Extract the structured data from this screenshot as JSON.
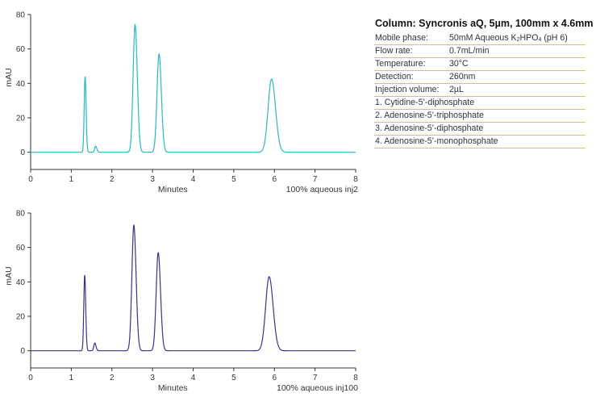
{
  "chart_data": [
    {
      "type": "line",
      "ylabel": "mAU",
      "xlabel": "Minutes",
      "caption": "100% aqueous inj2",
      "color": "#2ab7c2",
      "xlim": [
        0,
        8
      ],
      "ylim": [
        -10,
        80
      ],
      "xticks": [
        "0",
        "1",
        "2",
        "3",
        "4",
        "5",
        "6",
        "7",
        "8"
      ],
      "yticks": [
        "0",
        "20",
        "40",
        "60",
        "80"
      ],
      "baseline": 0,
      "peaks": [
        {
          "rt": 1.34,
          "height": 44,
          "width": 0.022
        },
        {
          "rt": 1.6,
          "height": 3.5,
          "width": 0.025
        },
        {
          "rt": 2.57,
          "height": 74,
          "width": 0.048
        },
        {
          "rt": 3.16,
          "height": 57,
          "width": 0.05
        },
        {
          "rt": 5.93,
          "height": 42.5,
          "width": 0.085
        }
      ]
    },
    {
      "type": "line",
      "ylabel": "mAU",
      "xlabel": "Minutes",
      "caption": "100% aqueous inj100",
      "color": "#3a3580",
      "xlim": [
        0,
        8
      ],
      "ylim": [
        -10,
        80
      ],
      "xticks": [
        "0",
        "1",
        "2",
        "3",
        "4",
        "5",
        "6",
        "7",
        "8"
      ],
      "yticks": [
        "0",
        "20",
        "40",
        "60",
        "80"
      ],
      "baseline": 0,
      "peaks": [
        {
          "rt": 1.33,
          "height": 44,
          "width": 0.022
        },
        {
          "rt": 1.58,
          "height": 4.5,
          "width": 0.025
        },
        {
          "rt": 2.54,
          "height": 73,
          "width": 0.048
        },
        {
          "rt": 3.14,
          "height": 57,
          "width": 0.05
        },
        {
          "rt": 5.87,
          "height": 43,
          "width": 0.085
        }
      ]
    }
  ],
  "info": {
    "title": "Column: Syncronis aQ, 5µm, 100mm x 4.6mm",
    "conditions": [
      {
        "label": "Mobile phase:",
        "value_pre": "50mM Aqueous K",
        "value_sub1": "2",
        "value_mid": "HPO",
        "value_sub2": "4",
        "value_post": " (pH 6)"
      },
      {
        "label": "Flow rate:",
        "value": "0.7mL/min"
      },
      {
        "label": "Temperature:",
        "value": "30°C"
      },
      {
        "label": "Detection:",
        "value": "260nm"
      },
      {
        "label": "Injection volume:",
        "value": "2µL"
      }
    ],
    "compounds": [
      "1. Cytidine-5’-diphosphate",
      "2. Adenosine-5’-triphosphate",
      "3. Adenosine-5’-diphosphate",
      "4. Adenosine-5’-monophosphate"
    ]
  }
}
